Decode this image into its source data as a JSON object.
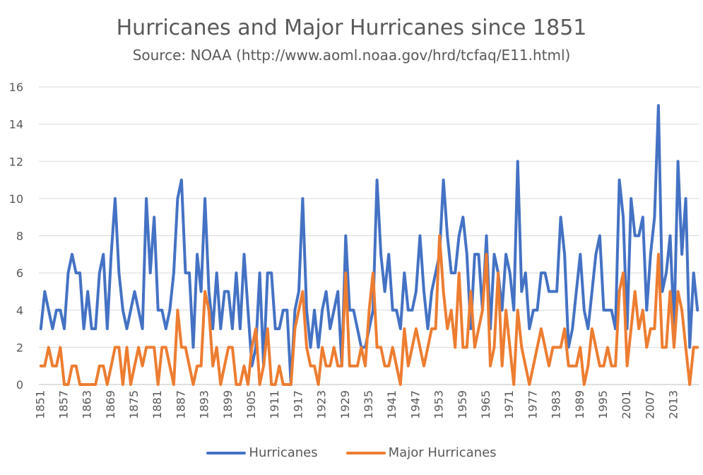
{
  "chart_data": {
    "type": "line",
    "title": "Hurricanes and Major Hurricanes since 1851",
    "subtitle": "Source: NOAA (http://www.aoml.noaa.gov/hrd/tcfaq/E11.html)",
    "xlabel": "",
    "ylabel": "",
    "ylim": [
      0,
      16
    ],
    "yticks": [
      0,
      2,
      4,
      6,
      8,
      10,
      12,
      14,
      16
    ],
    "grid": true,
    "legend_position": "bottom",
    "x_start": 1851,
    "x_tick_labels": [
      "1851",
      "1857",
      "1863",
      "1869",
      "1875",
      "1881",
      "1887",
      "1893",
      "1899",
      "1905",
      "1911",
      "1917",
      "1923",
      "1929",
      "1935",
      "1941",
      "1947",
      "1953",
      "1959",
      "1965",
      "1971",
      "1977",
      "1983",
      "1989",
      "1995",
      "2001",
      "2007",
      "2013"
    ],
    "series": [
      {
        "name": "Hurricanes",
        "color": "#4472C4",
        "values": [
          3,
          5,
          4,
          3,
          4,
          4,
          3,
          6,
          7,
          6,
          6,
          3,
          5,
          3,
          3,
          6,
          7,
          3,
          7,
          10,
          6,
          4,
          3,
          4,
          5,
          4,
          3,
          10,
          6,
          9,
          4,
          4,
          3,
          4,
          6,
          10,
          11,
          6,
          6,
          2,
          7,
          5,
          10,
          5,
          3,
          6,
          3,
          5,
          5,
          3,
          6,
          3,
          7,
          4,
          1,
          2,
          6,
          1,
          6,
          6,
          3,
          3,
          4,
          4,
          0,
          4,
          5,
          10,
          4,
          2,
          4,
          2,
          4,
          5,
          3,
          4,
          5,
          1,
          8,
          4,
          4,
          3,
          2,
          2,
          3,
          4,
          11,
          7,
          5,
          7,
          4,
          4,
          3,
          6,
          4,
          4,
          5,
          8,
          5,
          3,
          5,
          6,
          7,
          11,
          8,
          6,
          6,
          8,
          9,
          7,
          3,
          7,
          7,
          4,
          8,
          3,
          7,
          6,
          4,
          7,
          6,
          4,
          12,
          5,
          6,
          3,
          4,
          4,
          6,
          6,
          5,
          5,
          5,
          9,
          7,
          2,
          3,
          5,
          7,
          4,
          3,
          5,
          7,
          8,
          4,
          4,
          4,
          3,
          11,
          9,
          3,
          10,
          8,
          8,
          9,
          4,
          7,
          9,
          15,
          5,
          6,
          8,
          3,
          12,
          7,
          10,
          2,
          6,
          4
        ]
      },
      {
        "name": "Major Hurricanes",
        "color": "#ED7D31",
        "values": [
          1,
          1,
          2,
          1,
          1,
          2,
          0,
          0,
          1,
          1,
          0,
          0,
          0,
          0,
          0,
          1,
          1,
          0,
          1,
          2,
          2,
          0,
          2,
          0,
          1,
          2,
          1,
          2,
          2,
          2,
          0,
          2,
          2,
          1,
          0,
          4,
          2,
          2,
          1,
          0,
          1,
          1,
          5,
          4,
          1,
          2,
          0,
          1,
          2,
          2,
          0,
          0,
          1,
          0,
          2,
          3,
          0,
          1,
          3,
          0,
          0,
          1,
          0,
          0,
          0,
          3,
          4,
          5,
          2,
          1,
          1,
          0,
          2,
          1,
          1,
          2,
          1,
          1,
          6,
          1,
          1,
          1,
          2,
          1,
          4,
          6,
          2,
          2,
          1,
          1,
          2,
          1,
          0,
          3,
          1,
          2,
          3,
          2,
          1,
          2,
          3,
          3,
          8,
          5,
          3,
          4,
          2,
          6,
          2,
          2,
          5,
          2,
          3,
          4,
          7,
          1,
          2,
          6,
          1,
          4,
          2,
          0,
          4,
          2,
          1,
          0,
          1,
          2,
          3,
          2,
          1,
          2,
          2,
          2,
          3,
          1,
          1,
          1,
          2,
          0,
          1,
          3,
          2,
          1,
          1,
          2,
          1,
          1,
          5,
          6,
          1,
          3,
          5,
          3,
          4,
          2,
          3,
          3,
          7,
          2,
          2,
          5,
          2,
          5,
          4,
          2,
          0,
          2,
          2
        ]
      }
    ]
  }
}
